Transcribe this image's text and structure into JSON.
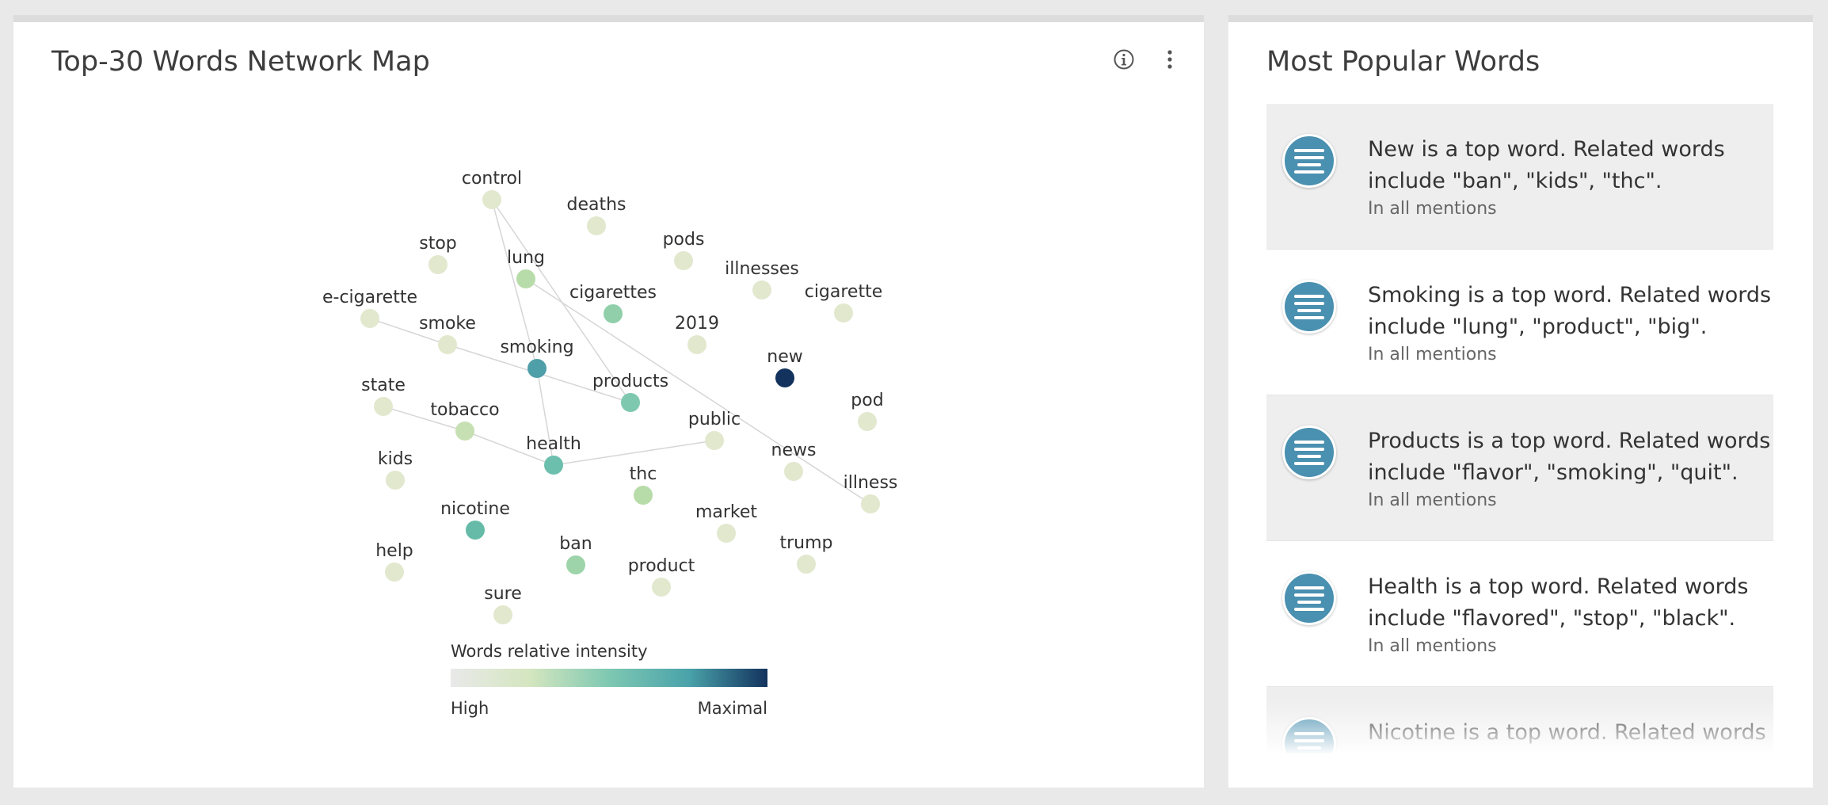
{
  "network_panel": {
    "title": "Top-30 Words Network Map",
    "info_icon": "info-icon",
    "menu_icon": "kebab-menu-icon",
    "legend": {
      "title": "Words relative intensity",
      "low_label": "High",
      "high_label": "Maximal",
      "gradient": [
        "#e9e9e9",
        "#d4e6bf",
        "#7ec8b2",
        "#4aa3aa",
        "#13325e"
      ]
    }
  },
  "chart_data": {
    "type": "network",
    "nodes": [
      {
        "id": "control",
        "color": "#e2e8ce"
      },
      {
        "id": "deaths",
        "color": "#e2e8ce"
      },
      {
        "id": "stop",
        "color": "#e2e8ce"
      },
      {
        "id": "pods",
        "color": "#e2e8ce"
      },
      {
        "id": "lung",
        "color": "#b7dca9"
      },
      {
        "id": "illnesses",
        "color": "#e2e8ce"
      },
      {
        "id": "cigarettes",
        "color": "#90cfaa"
      },
      {
        "id": "cigarette",
        "color": "#e2e8ce"
      },
      {
        "id": "e-cigarette",
        "color": "#e2e8ce"
      },
      {
        "id": "smoke",
        "color": "#e2e8ce"
      },
      {
        "id": "2019",
        "color": "#e2e8ce"
      },
      {
        "id": "smoking",
        "color": "#4f9fa8"
      },
      {
        "id": "new",
        "color": "#13325e"
      },
      {
        "id": "products",
        "color": "#7ec8b0"
      },
      {
        "id": "state",
        "color": "#e2e8ce"
      },
      {
        "id": "pod",
        "color": "#e2e8ce"
      },
      {
        "id": "tobacco",
        "color": "#c7e0b3"
      },
      {
        "id": "public",
        "color": "#e2e8ce"
      },
      {
        "id": "health",
        "color": "#6dbfad"
      },
      {
        "id": "kids",
        "color": "#e2e8ce"
      },
      {
        "id": "news",
        "color": "#e2e8ce"
      },
      {
        "id": "illness",
        "color": "#e2e8ce"
      },
      {
        "id": "thc",
        "color": "#b7dca9"
      },
      {
        "id": "nicotine",
        "color": "#65bba8"
      },
      {
        "id": "market",
        "color": "#e2e8ce"
      },
      {
        "id": "help",
        "color": "#e2e8ce"
      },
      {
        "id": "ban",
        "color": "#9dd4a9"
      },
      {
        "id": "trump",
        "color": "#e2e8ce"
      },
      {
        "id": "product",
        "color": "#e2e8ce"
      },
      {
        "id": "sure",
        "color": "#e2e8ce"
      }
    ],
    "edges": [
      [
        "control",
        "smoking"
      ],
      [
        "control",
        "products"
      ],
      [
        "lung",
        "illness"
      ],
      [
        "smoking",
        "health"
      ],
      [
        "e-cigarette",
        "smoke"
      ],
      [
        "smoke",
        "products"
      ],
      [
        "state",
        "tobacco"
      ],
      [
        "tobacco",
        "health"
      ],
      [
        "health",
        "public"
      ]
    ]
  },
  "popular_panel": {
    "title": "Most Popular Words",
    "items": [
      {
        "summary": "New is a top word. Related words include \"ban\", \"kids\", \"thc\".",
        "scope": "In all mentions"
      },
      {
        "summary": "Smoking is a top word. Related words include \"lung\", \"product\", \"big\".",
        "scope": "In all mentions"
      },
      {
        "summary": "Products is a top word. Related words include \"flavor\", \"smoking\", \"quit\".",
        "scope": "In all mentions"
      },
      {
        "summary": "Health is a top word. Related words include \"flavored\", \"stop\", \"black\".",
        "scope": "In all mentions"
      },
      {
        "summary": "Nicotine is a top word. Related words",
        "scope": ""
      }
    ]
  }
}
